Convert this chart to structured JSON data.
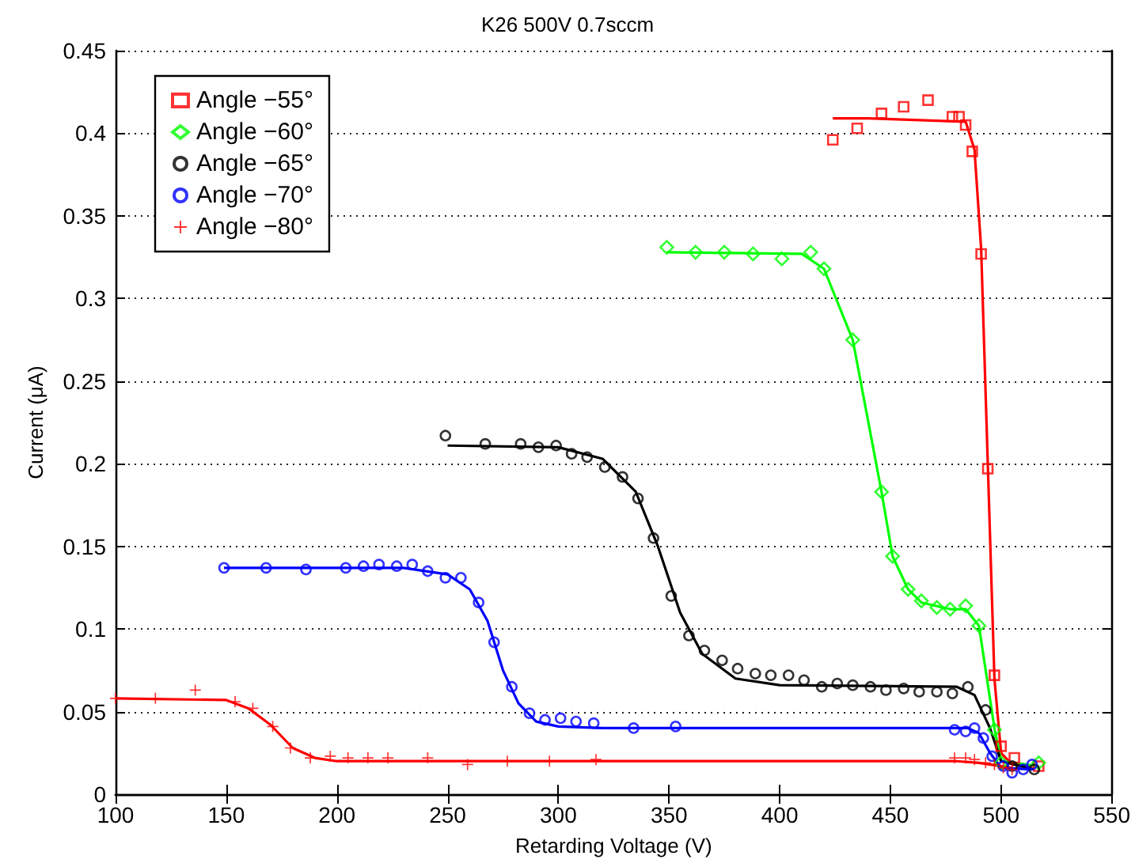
{
  "chart_data": {
    "type": "scatter",
    "title": "K26 500V 0.7sccm",
    "xlabel": "Retarding Voltage (V)",
    "ylabel": "Current (μA)",
    "xlim": [
      100,
      550
    ],
    "xticks": [
      100,
      150,
      200,
      250,
      300,
      350,
      400,
      450,
      500,
      550
    ],
    "ylim": [
      0,
      0.45
    ],
    "yticks": [
      0,
      0.05,
      0.1,
      0.15,
      0.2,
      0.25,
      0.3,
      0.35,
      0.4,
      0.45
    ],
    "grid": "y",
    "legend": "top left",
    "series": [
      {
        "name": "Angle −55°",
        "marker": "square",
        "color": "#ff0000",
        "x": [
          424,
          435,
          446,
          456,
          467,
          478,
          481,
          484,
          487,
          491,
          494,
          497,
          500,
          506,
          517
        ],
        "values": [
          0.396,
          0.403,
          0.412,
          0.416,
          0.42,
          0.41,
          0.41,
          0.405,
          0.389,
          0.327,
          0.197,
          0.072,
          0.029,
          0.022,
          0.017
        ]
      },
      {
        "name": "Angle −60°",
        "marker": "diamond",
        "color": "#00ff00",
        "x": [
          349,
          362,
          375,
          388,
          401,
          414,
          420,
          433,
          446,
          451,
          458,
          464,
          471,
          477,
          484,
          490,
          497,
          500,
          517
        ],
        "values": [
          0.331,
          0.328,
          0.328,
          0.327,
          0.324,
          0.328,
          0.318,
          0.275,
          0.183,
          0.144,
          0.124,
          0.117,
          0.113,
          0.112,
          0.114,
          0.102,
          0.039,
          0.019,
          0.019
        ]
      },
      {
        "name": "Angle −65°",
        "marker": "circle",
        "color": "#000000",
        "x": [
          249,
          267,
          283,
          291,
          299,
          306,
          313,
          321,
          329,
          336,
          343,
          351,
          359,
          366,
          374,
          381,
          389,
          396,
          404,
          411,
          419,
          426,
          433,
          441,
          448,
          456,
          463,
          471,
          478,
          485,
          493,
          505,
          515
        ],
        "values": [
          0.217,
          0.212,
          0.212,
          0.21,
          0.211,
          0.206,
          0.204,
          0.198,
          0.192,
          0.179,
          0.155,
          0.12,
          0.096,
          0.087,
          0.081,
          0.076,
          0.073,
          0.072,
          0.072,
          0.069,
          0.065,
          0.067,
          0.066,
          0.065,
          0.063,
          0.064,
          0.062,
          0.062,
          0.061,
          0.065,
          0.051,
          0.017,
          0.015
        ]
      },
      {
        "name": "Angle −70°",
        "marker": "circle",
        "color": "#0000ff",
        "x": [
          149,
          168,
          186,
          204,
          212,
          219,
          227,
          234,
          241,
          249,
          256,
          264,
          271,
          279,
          287,
          294,
          301,
          308,
          316,
          334,
          353,
          479,
          484,
          488,
          492,
          496,
          501,
          505,
          510,
          514
        ],
        "values": [
          0.137,
          0.137,
          0.136,
          0.137,
          0.138,
          0.139,
          0.138,
          0.139,
          0.135,
          0.131,
          0.131,
          0.116,
          0.092,
          0.065,
          0.049,
          0.045,
          0.046,
          0.044,
          0.043,
          0.04,
          0.041,
          0.039,
          0.038,
          0.04,
          0.034,
          0.023,
          0.017,
          0.013,
          0.015,
          0.018
        ]
      },
      {
        "name": "Angle −80°",
        "marker": "cross",
        "color": "#ff0000",
        "x": [
          100,
          118,
          136,
          154,
          162,
          171,
          179,
          188,
          197,
          205,
          214,
          223,
          241,
          259,
          277,
          296,
          317,
          479,
          484,
          488,
          493,
          497,
          501,
          505
        ],
        "values": [
          0.058,
          0.058,
          0.063,
          0.056,
          0.052,
          0.041,
          0.028,
          0.022,
          0.023,
          0.022,
          0.022,
          0.022,
          0.022,
          0.018,
          0.02,
          0.02,
          0.021,
          0.022,
          0.022,
          0.021,
          0.019,
          0.018,
          0.016,
          0.015
        ]
      },
      {
        "type": "line",
        "marker": "none",
        "color": "#ff0000",
        "x": [
          424,
          440,
          484,
          488,
          491,
          494,
          497,
          500,
          505,
          517
        ],
        "values": [
          0.409,
          0.409,
          0.407,
          0.39,
          0.33,
          0.2,
          0.07,
          0.025,
          0.018,
          0.017
        ]
      },
      {
        "type": "line",
        "marker": "none",
        "color": "#00ff00",
        "x": [
          349,
          410,
          420,
          433,
          446,
          451,
          458,
          464,
          477,
          484,
          490,
          497,
          500,
          517
        ],
        "values": [
          0.328,
          0.327,
          0.318,
          0.275,
          0.183,
          0.144,
          0.124,
          0.116,
          0.112,
          0.112,
          0.102,
          0.04,
          0.02,
          0.017
        ]
      },
      {
        "type": "line",
        "marker": "none",
        "color": "#000000",
        "x": [
          250,
          300,
          320,
          335,
          345,
          355,
          365,
          380,
          400,
          480,
          488,
          495,
          500,
          515
        ],
        "values": [
          0.211,
          0.21,
          0.203,
          0.183,
          0.15,
          0.11,
          0.085,
          0.07,
          0.066,
          0.065,
          0.06,
          0.04,
          0.02,
          0.015
        ]
      },
      {
        "type": "line",
        "marker": "none",
        "color": "#0000ff",
        "x": [
          149,
          230,
          250,
          260,
          268,
          275,
          282,
          290,
          300,
          320,
          485,
          490,
          495,
          500,
          514
        ],
        "values": [
          0.137,
          0.137,
          0.133,
          0.124,
          0.105,
          0.075,
          0.055,
          0.044,
          0.041,
          0.04,
          0.04,
          0.037,
          0.025,
          0.016,
          0.015
        ]
      },
      {
        "type": "line",
        "marker": "none",
        "color": "#ff0000",
        "x": [
          100,
          150,
          160,
          170,
          180,
          190,
          200,
          480,
          490,
          505
        ],
        "values": [
          0.058,
          0.057,
          0.052,
          0.042,
          0.028,
          0.022,
          0.02,
          0.02,
          0.019,
          0.016
        ]
      }
    ]
  }
}
